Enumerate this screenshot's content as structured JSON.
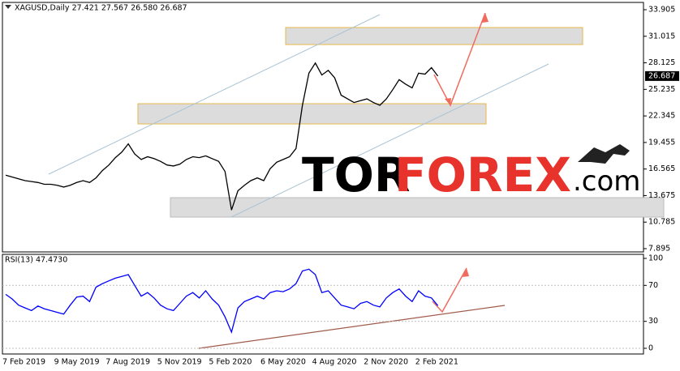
{
  "chart_data": [
    {
      "type": "line",
      "title": "XAGUSD,Daily  27.421 27.567 26.580 26.687",
      "color": "#000000",
      "values": [
        15.9,
        15.7,
        15.5,
        15.3,
        15.2,
        15.1,
        14.9,
        14.9,
        14.8,
        14.6,
        14.8,
        15.1,
        15.3,
        15.1,
        15.6,
        16.4,
        17.0,
        17.8,
        18.4,
        19.3,
        18.2,
        17.6,
        17.9,
        17.7,
        17.4,
        17.0,
        16.9,
        17.1,
        17.6,
        17.9,
        17.8,
        18.0,
        17.7,
        17.4,
        16.3,
        12.1,
        14.2,
        14.8,
        15.3,
        15.6,
        15.3,
        16.6,
        17.3,
        17.6,
        17.9,
        18.8,
        23.5,
        27.0,
        28.1,
        26.8,
        27.3,
        26.5,
        24.6,
        24.2,
        23.8,
        24.0,
        24.2,
        23.8,
        23.5,
        24.2,
        25.2,
        26.3,
        25.8,
        25.4,
        27.0,
        26.9,
        27.6,
        26.687
      ],
      "last_price": 26.687,
      "ylim": [
        7.54,
        34.7
      ],
      "yticks": [
        33.905,
        31.015,
        28.125,
        25.235,
        22.345,
        19.455,
        16.565,
        13.675,
        10.785,
        7.895
      ],
      "grid": false,
      "watermark": [
        "TOR",
        "FOREX",
        ".com"
      ]
    },
    {
      "type": "line",
      "title": "RSI(13) 47.4730",
      "color": "#0000ff",
      "categories": [
        "7 Feb 2019",
        null,
        null,
        null,
        null,
        null,
        null,
        null,
        "9 May 2019",
        null,
        null,
        null,
        null,
        null,
        null,
        null,
        "7 Aug 2019",
        null,
        null,
        null,
        null,
        null,
        null,
        null,
        "5 Nov 2019",
        null,
        null,
        null,
        null,
        null,
        null,
        null,
        "5 Feb 2020",
        null,
        null,
        null,
        null,
        null,
        null,
        null,
        "6 May 2020",
        null,
        null,
        null,
        null,
        null,
        null,
        null,
        "4 Aug 2020",
        null,
        null,
        null,
        null,
        null,
        null,
        null,
        "2 Nov 2020",
        null,
        null,
        null,
        null,
        null,
        null,
        null,
        "2 Feb 2021",
        null,
        null,
        null
      ],
      "values": [
        60,
        55,
        48,
        45,
        42,
        47,
        44,
        42,
        40,
        38,
        48,
        57,
        58,
        52,
        68,
        72,
        75,
        78,
        80,
        82,
        70,
        58,
        62,
        56,
        48,
        44,
        42,
        50,
        58,
        62,
        56,
        64,
        55,
        48,
        35,
        18,
        45,
        52,
        55,
        58,
        55,
        62,
        64,
        63,
        66,
        72,
        86,
        88,
        82,
        62,
        64,
        56,
        48,
        46,
        44,
        50,
        52,
        48,
        46,
        56,
        62,
        66,
        58,
        52,
        64,
        58,
        56,
        47.473
      ],
      "ylim": [
        -6.3,
        104.5
      ],
      "yticks": [
        100,
        70,
        30,
        0
      ],
      "grid": false
    }
  ]
}
